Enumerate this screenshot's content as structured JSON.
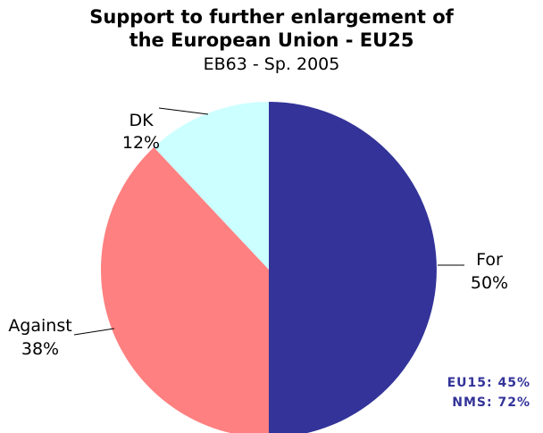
{
  "chart_data": {
    "type": "pie",
    "title": "Support to further enlargement of the European Union - EU25",
    "title_lines": [
      "Support to further enlargement of",
      "the European Union - EU25"
    ],
    "subtitle": "EB63 - Sp. 2005",
    "slices": [
      {
        "name": "For",
        "value": 50,
        "value_label": "50%",
        "color": "#333399"
      },
      {
        "name": "Against",
        "value": 38,
        "value_label": "38%",
        "color": "#FF8080"
      },
      {
        "name": "DK",
        "value": 12,
        "value_label": "12%",
        "color": "#CCFFFF"
      }
    ],
    "start": "12 o'clock, clockwise",
    "annotations": [
      "EU15: 45%",
      "NMS: 72%"
    ],
    "annotation_color": "#333399"
  }
}
